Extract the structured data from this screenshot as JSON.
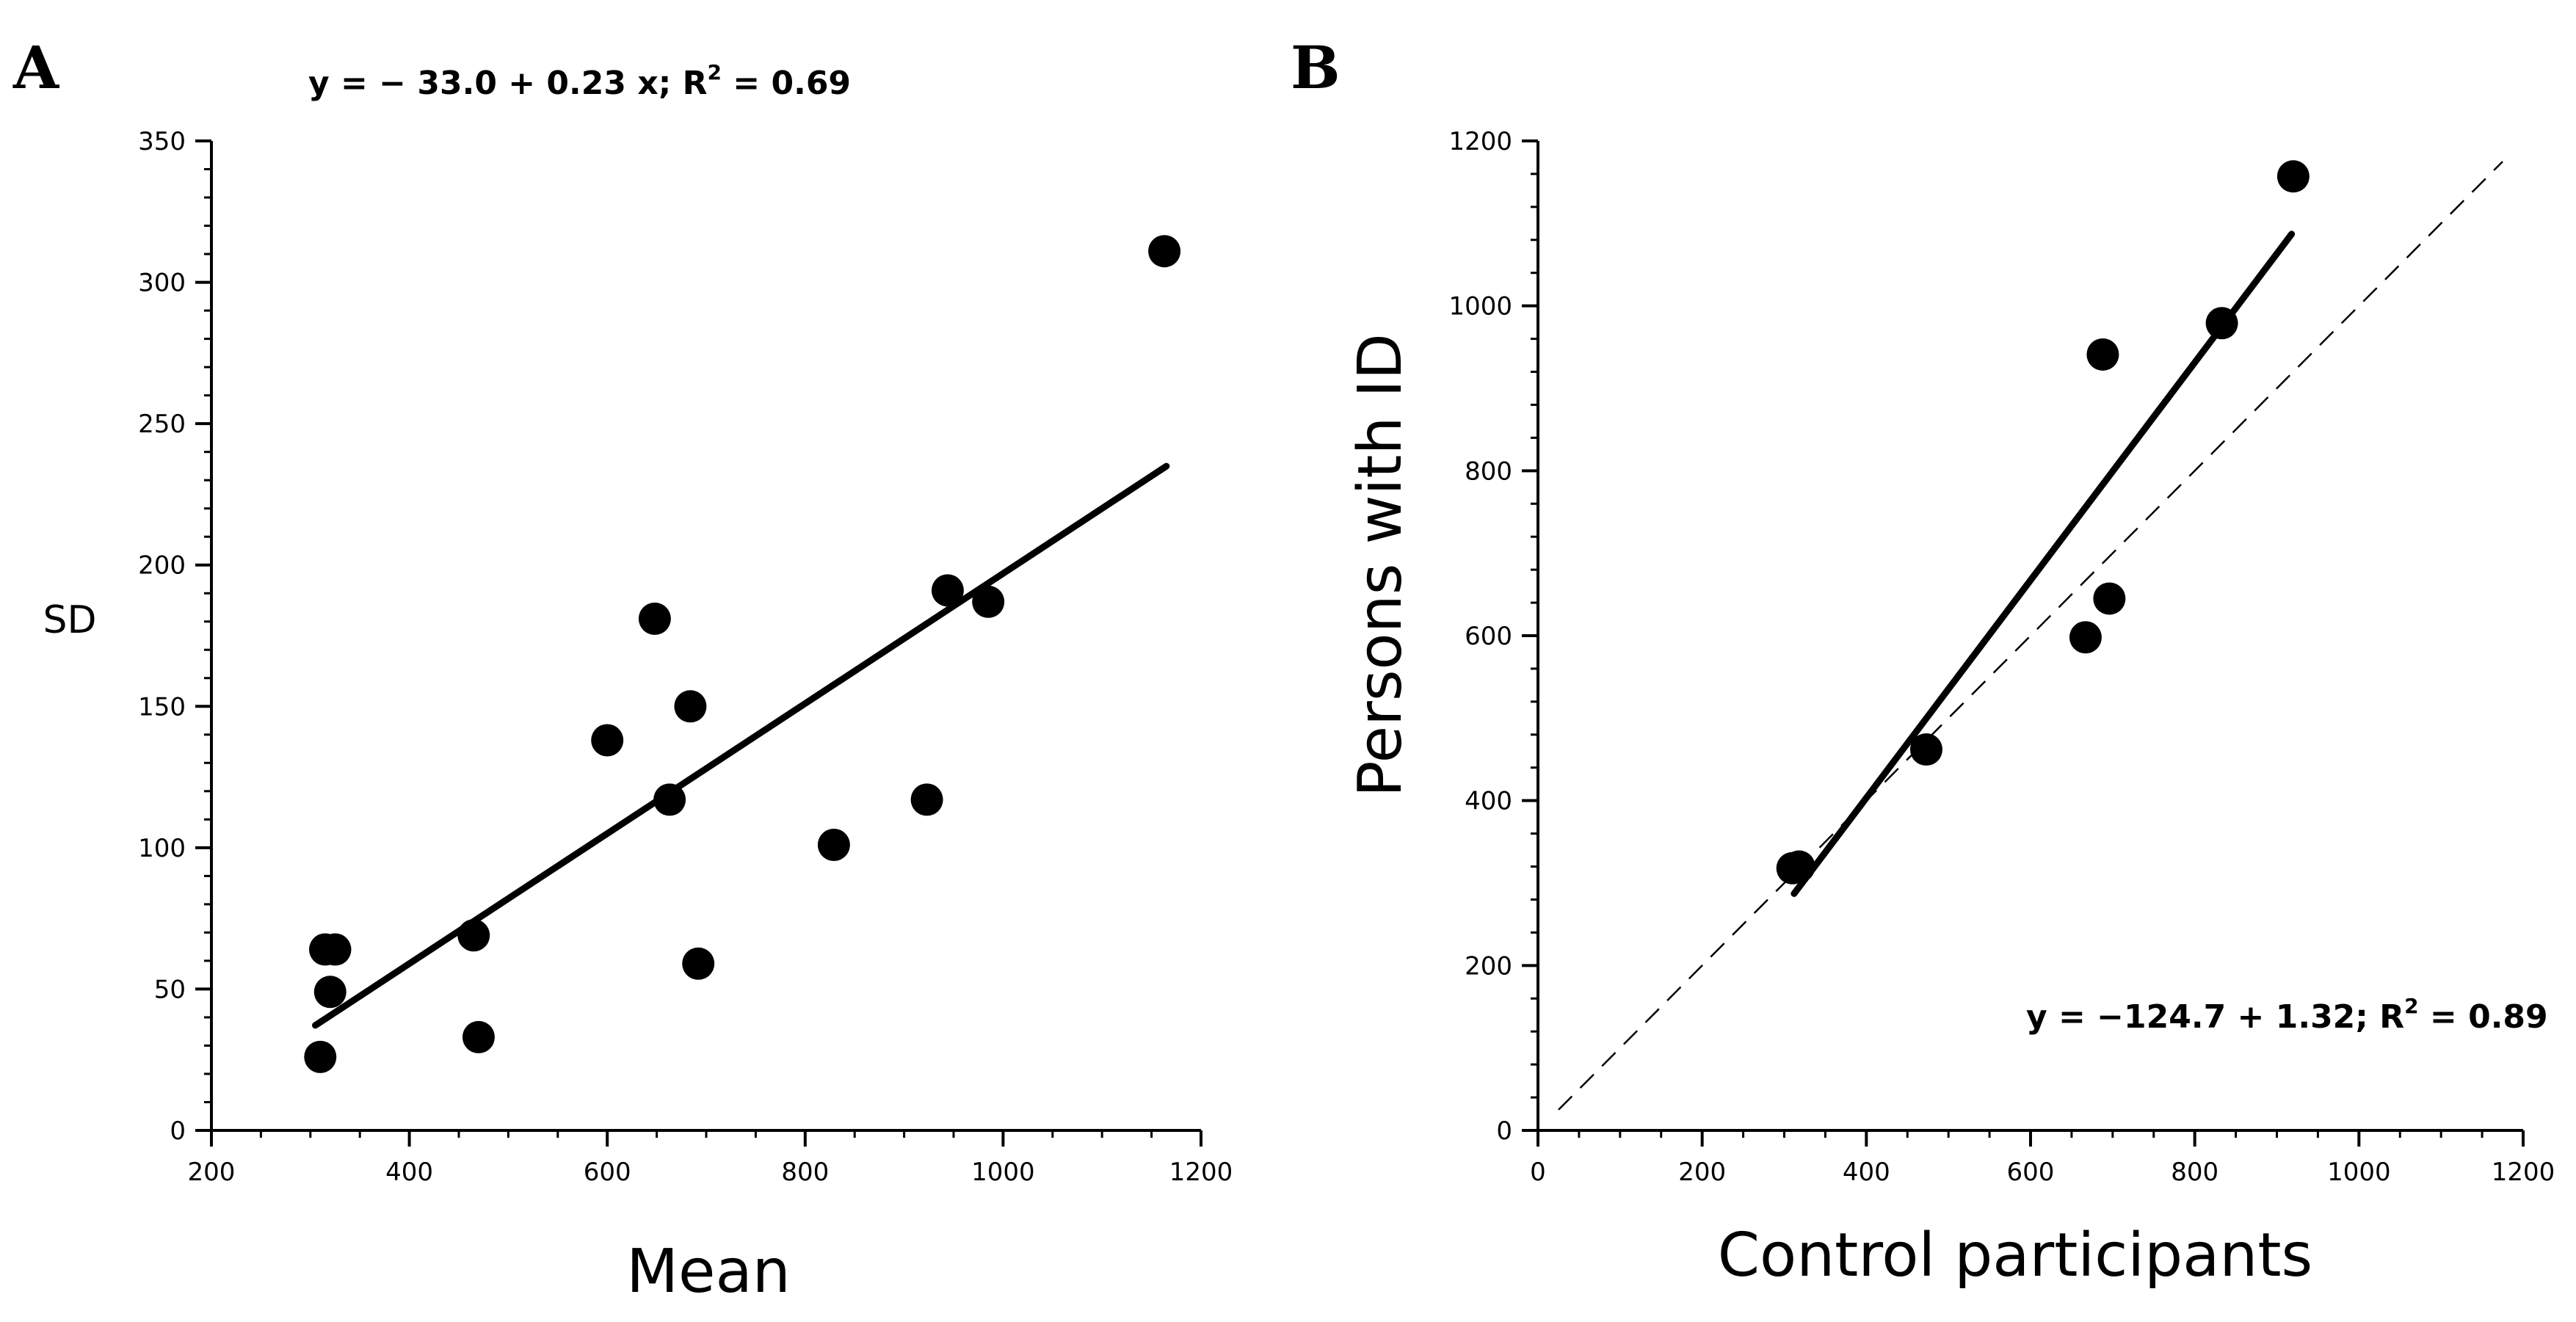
{
  "chart_data": [
    {
      "type": "scatter",
      "panel": "A",
      "title": "y = − 33.0 + 0.23 x;  R² = 0.69",
      "equation_main": "y = − 33.0 + 0.23 x;  R",
      "equation_sup": "2",
      "equation_tail": " = 0.69",
      "xlabel": "Mean",
      "ylabel": "SD",
      "xlim": [
        200,
        1200
      ],
      "ylim": [
        0,
        350
      ],
      "xticks": [
        200,
        400,
        600,
        800,
        1000,
        1200
      ],
      "yticks": [
        0,
        50,
        100,
        150,
        200,
        250,
        300,
        350
      ],
      "x_minor_step": 50,
      "y_minor_step": 10,
      "grid": false,
      "points": [
        {
          "x": 310,
          "y": 26
        },
        {
          "x": 315,
          "y": 64
        },
        {
          "x": 325,
          "y": 64
        },
        {
          "x": 320,
          "y": 49
        },
        {
          "x": 465,
          "y": 69
        },
        {
          "x": 470,
          "y": 33
        },
        {
          "x": 600,
          "y": 138
        },
        {
          "x": 648,
          "y": 181
        },
        {
          "x": 663,
          "y": 117
        },
        {
          "x": 684,
          "y": 150
        },
        {
          "x": 692,
          "y": 59
        },
        {
          "x": 829,
          "y": 101
        },
        {
          "x": 923,
          "y": 117
        },
        {
          "x": 944,
          "y": 191
        },
        {
          "x": 985,
          "y": 187
        },
        {
          "x": 1163,
          "y": 311
        }
      ],
      "fit_line": {
        "intercept": -33.0,
        "slope": 0.23,
        "x_start": 305,
        "x_end": 1165
      }
    },
    {
      "type": "scatter",
      "panel": "B",
      "title": "y = −124.7 + 1.32; R² = 0.89",
      "equation_main": "y = −124.7 + 1.32; R",
      "equation_sup": "2",
      "equation_tail": " = 0.89",
      "xlabel": "Control participants",
      "ylabel": "Persons with ID",
      "xlim": [
        0,
        1200
      ],
      "ylim": [
        0,
        1200
      ],
      "xticks": [
        0,
        200,
        400,
        600,
        800,
        1000,
        1200
      ],
      "yticks": [
        0,
        200,
        400,
        600,
        800,
        1000,
        1200
      ],
      "x_minor_step": 50,
      "y_minor_step": 40,
      "grid": false,
      "points": [
        {
          "x": 310,
          "y": 318
        },
        {
          "x": 318,
          "y": 320
        },
        {
          "x": 473,
          "y": 462
        },
        {
          "x": 667,
          "y": 598
        },
        {
          "x": 688,
          "y": 941
        },
        {
          "x": 696,
          "y": 645
        },
        {
          "x": 833,
          "y": 979
        },
        {
          "x": 920,
          "y": 1157
        }
      ],
      "fit_line": {
        "intercept": -124.7,
        "slope": 1.32,
        "x_start": 312,
        "x_end": 918
      },
      "identity_line": {
        "x_start": 25,
        "x_end": 1175
      }
    }
  ]
}
